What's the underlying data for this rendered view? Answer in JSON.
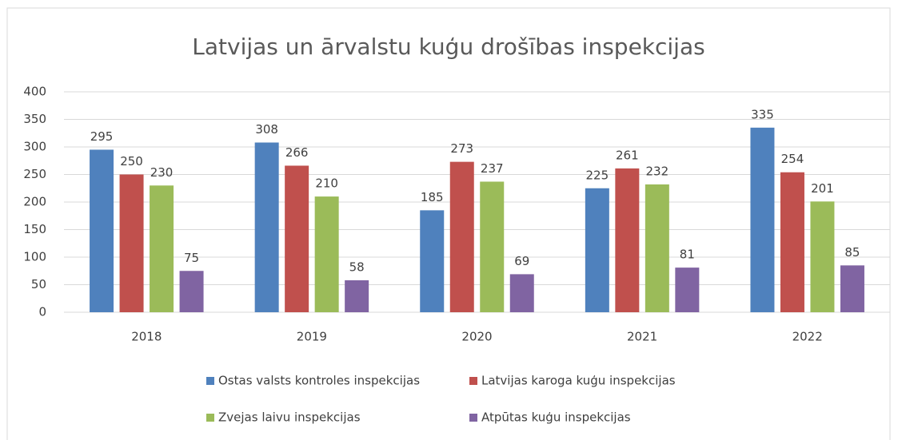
{
  "chart_data": {
    "type": "bar",
    "title": "Latvijas un ārvalstu kuģu drošības inspekcijas",
    "categories": [
      "2018",
      "2019",
      "2020",
      "2021",
      "2022"
    ],
    "series": [
      {
        "name": "Ostas valsts kontroles inspekcijas",
        "color": "#4f81bd",
        "values": [
          295,
          308,
          185,
          225,
          335
        ]
      },
      {
        "name": "Latvijas karoga kuģu inspekcijas",
        "color": "#c0504d",
        "values": [
          250,
          266,
          273,
          261,
          254
        ]
      },
      {
        "name": "Zvejas laivu inspekcijas",
        "color": "#9bbb59",
        "values": [
          230,
          210,
          237,
          232,
          201
        ]
      },
      {
        "name": "Atpūtas kuģu inspekcijas",
        "color": "#8064a2",
        "values": [
          75,
          58,
          69,
          81,
          85
        ]
      }
    ],
    "ylim": [
      0,
      400
    ],
    "yticks": [
      0,
      50,
      100,
      150,
      200,
      250,
      300,
      350,
      400
    ],
    "grid": true,
    "legend": "bottom"
  }
}
